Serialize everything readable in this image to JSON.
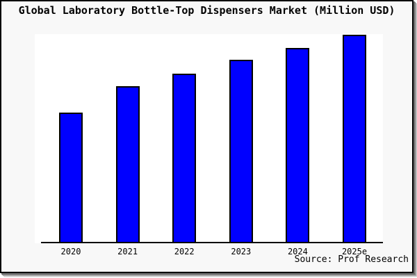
{
  "title": "Global Laboratory Bottle-Top Dispensers Market (Million USD)",
  "source_note": "Source: Prof Research",
  "colors": {
    "bar_fill": "#0000ff",
    "bar_border": "#000000",
    "frame_background": "#f8f8f8",
    "plot_background": "#ffffff",
    "frame_border": "#000000",
    "shadow": "#8c8c8c",
    "text": "#000000"
  },
  "chart_data": {
    "type": "bar",
    "title": "Global Laboratory Bottle-Top Dispensers Market (Million USD)",
    "categories": [
      "2020",
      "2021",
      "2022",
      "2023",
      "2024",
      "2025e"
    ],
    "values": [
      62.8,
      75.2,
      81.5,
      87.9,
      93.8,
      100
    ],
    "value_basis": "relative height, tallest bar = 100 (no y-axis scale shown in chart)",
    "xlabel": "",
    "ylabel": "",
    "ylim": [
      0,
      100
    ],
    "grid": false,
    "legend": false,
    "annotation": "Source: Prof Research"
  }
}
